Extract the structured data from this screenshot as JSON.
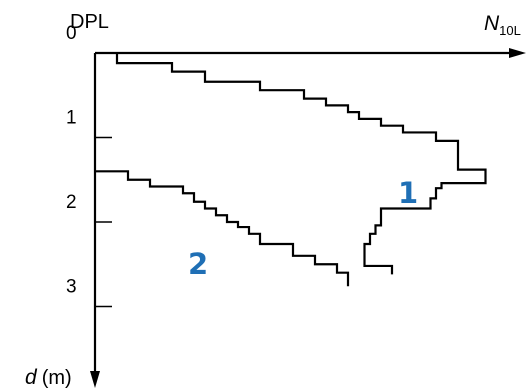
{
  "chart_data": {
    "type": "line",
    "title": "",
    "header_label": "DPL",
    "xlabel": {
      "main": "N",
      "sub": "10L"
    },
    "ylabel": {
      "var": "d",
      "unit": "(m)"
    },
    "y_ticks": [
      "0",
      "1",
      "2",
      "3"
    ],
    "ylim": [
      0,
      3.6
    ],
    "y_inverted": true,
    "xlim": [
      0,
      36
    ],
    "grid": false,
    "label_color": "#1f6fb5",
    "series": [
      {
        "label": "1",
        "points": [
          [
            2,
            0.0
          ],
          [
            2,
            0.12
          ],
          [
            7,
            0.12
          ],
          [
            7,
            0.22
          ],
          [
            10,
            0.22
          ],
          [
            10,
            0.34
          ],
          [
            15,
            0.34
          ],
          [
            15,
            0.44
          ],
          [
            19,
            0.44
          ],
          [
            19,
            0.54
          ],
          [
            21,
            0.54
          ],
          [
            21,
            0.62
          ],
          [
            23,
            0.62
          ],
          [
            23,
            0.7
          ],
          [
            24,
            0.7
          ],
          [
            24,
            0.78
          ],
          [
            26,
            0.78
          ],
          [
            26,
            0.86
          ],
          [
            28,
            0.86
          ],
          [
            28,
            0.94
          ],
          [
            31,
            0.94
          ],
          [
            31,
            1.04
          ],
          [
            33,
            1.04
          ],
          [
            33,
            1.14
          ],
          [
            33,
            1.38
          ],
          [
            35.5,
            1.38
          ],
          [
            35.5,
            1.54
          ],
          [
            31.5,
            1.54
          ],
          [
            31.5,
            1.6
          ],
          [
            31,
            1.6
          ],
          [
            31,
            1.72
          ],
          [
            30.5,
            1.72
          ],
          [
            30.5,
            1.84
          ],
          [
            26,
            1.84
          ],
          [
            26,
            2.04
          ],
          [
            25.5,
            2.04
          ],
          [
            25.5,
            2.14
          ],
          [
            25,
            2.14
          ],
          [
            25,
            2.26
          ],
          [
            24.5,
            2.26
          ],
          [
            24.5,
            2.36
          ],
          [
            24.5,
            2.46
          ],
          [
            24.5,
            2.52
          ],
          [
            27,
            2.52
          ],
          [
            27,
            2.62
          ]
        ]
      },
      {
        "label": "2",
        "points": [
          [
            0,
            1.4
          ],
          [
            3,
            1.4
          ],
          [
            3,
            1.5
          ],
          [
            5,
            1.5
          ],
          [
            5,
            1.58
          ],
          [
            8,
            1.58
          ],
          [
            8,
            1.66
          ],
          [
            9,
            1.66
          ],
          [
            9,
            1.76
          ],
          [
            10,
            1.76
          ],
          [
            10,
            1.84
          ],
          [
            11,
            1.84
          ],
          [
            11,
            1.92
          ],
          [
            12,
            1.92
          ],
          [
            12,
            2.0
          ],
          [
            13,
            2.0
          ],
          [
            13,
            2.06
          ],
          [
            14,
            2.06
          ],
          [
            14,
            2.14
          ],
          [
            15,
            2.14
          ],
          [
            15,
            2.26
          ],
          [
            18,
            2.26
          ],
          [
            18,
            2.4
          ],
          [
            20,
            2.4
          ],
          [
            20,
            2.5
          ],
          [
            22,
            2.5
          ],
          [
            22,
            2.6
          ],
          [
            23,
            2.6
          ],
          [
            23,
            2.76
          ]
        ]
      }
    ]
  }
}
